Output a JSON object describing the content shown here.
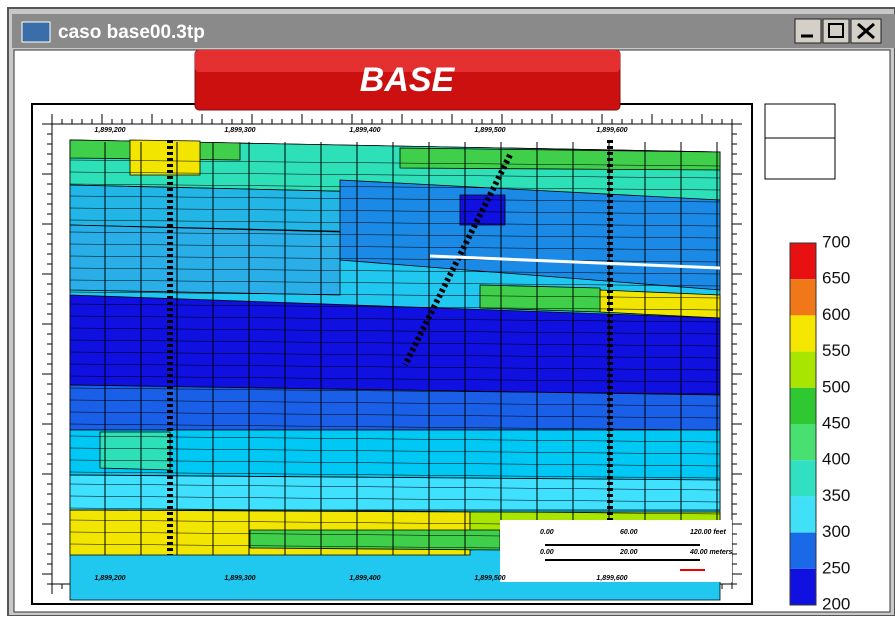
{
  "window": {
    "title": "caso base00.3tp"
  },
  "banner": {
    "text": "BASE"
  },
  "axis": {
    "top_labels": [
      "1,899,200",
      "1,899,300",
      "1,899,400",
      "1,899,500",
      "1,899,600"
    ],
    "bottom_labels": [
      "1,899,200",
      "1,899,300",
      "1,899,400",
      "1,899,500",
      "1,899,600"
    ]
  },
  "scale_bar": {
    "feet": [
      "0.00",
      "60.00",
      "120.00 feet"
    ],
    "meters": [
      "0.00",
      "20.00",
      "40.00 meters"
    ]
  },
  "legend": {
    "labels": [
      "700",
      "650",
      "600",
      "550",
      "500",
      "450",
      "400",
      "350",
      "300",
      "250",
      "200"
    ]
  }
}
